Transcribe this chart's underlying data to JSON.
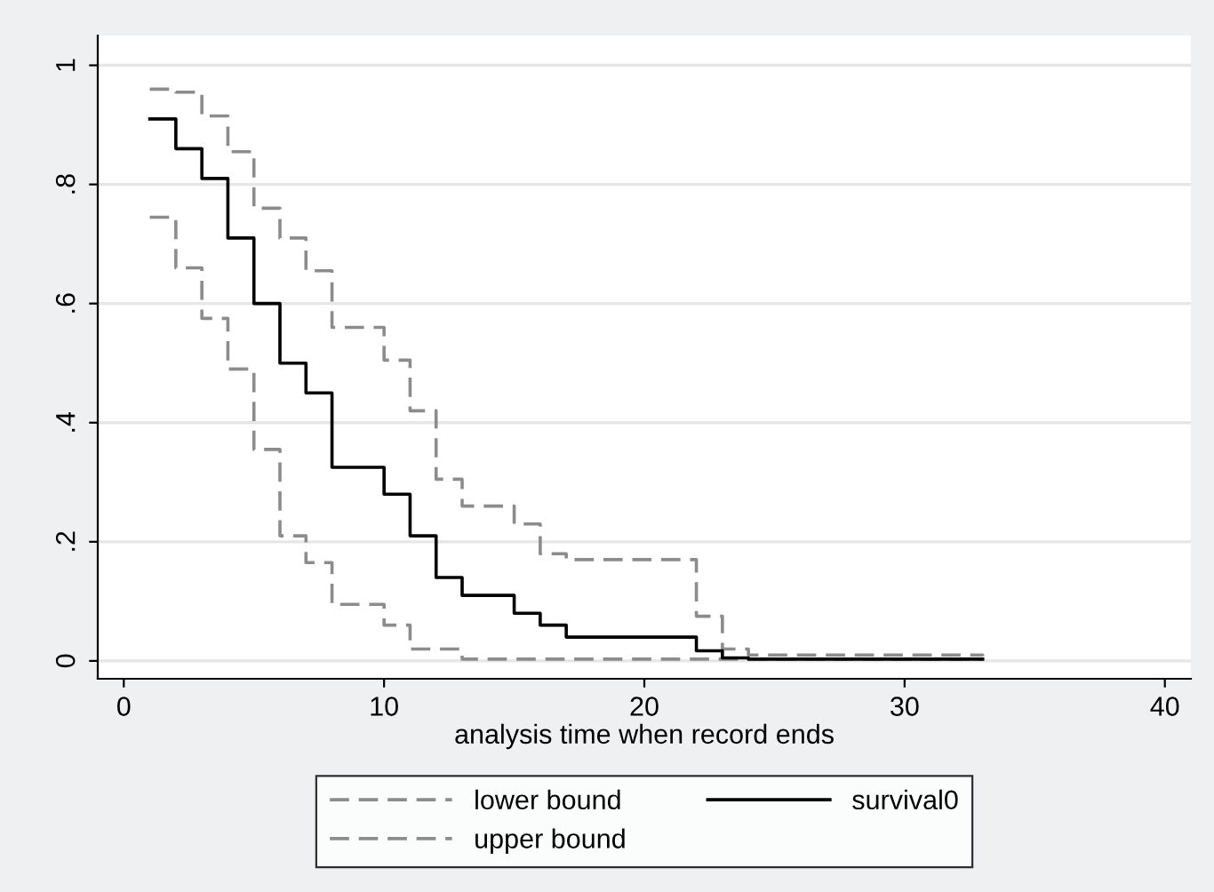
{
  "chart_data": {
    "type": "step",
    "xlabel": "analysis time when record ends",
    "x": [
      1,
      2,
      3,
      4,
      5,
      6,
      7,
      8,
      10,
      11,
      12,
      13,
      15,
      16,
      17,
      22,
      23,
      24,
      33
    ],
    "series": [
      {
        "name": "lower bound",
        "color": "#8c8c8c",
        "line_style": "dashed",
        "values": [
          0.745,
          0.66,
          0.575,
          0.49,
          0.355,
          0.21,
          0.165,
          0.095,
          0.06,
          0.02,
          0.02,
          0.003,
          0.003,
          0.003,
          0.003,
          0.003,
          0.003,
          0.003,
          0.003
        ]
      },
      {
        "name": "upper bound",
        "color": "#8c8c8c",
        "line_style": "dashed",
        "values": [
          0.96,
          0.955,
          0.915,
          0.855,
          0.76,
          0.71,
          0.655,
          0.56,
          0.505,
          0.42,
          0.305,
          0.26,
          0.23,
          0.18,
          0.17,
          0.075,
          0.02,
          0.01,
          0.008
        ]
      },
      {
        "name": "survival0",
        "color": "#000000",
        "line_style": "solid",
        "values": [
          0.91,
          0.86,
          0.81,
          0.71,
          0.6,
          0.5,
          0.45,
          0.325,
          0.28,
          0.21,
          0.14,
          0.11,
          0.08,
          0.06,
          0.04,
          0.017,
          0.005,
          0.003,
          0.003
        ]
      }
    ],
    "xlim": [
      -1,
      41
    ],
    "xticks": [
      0,
      10,
      20,
      30,
      40
    ],
    "ylim": [
      -0.03,
      1.05
    ],
    "yticks": [
      {
        "value": 0,
        "label": "0"
      },
      {
        "value": 0.2,
        "label": ".2"
      },
      {
        "value": 0.4,
        "label": ".4"
      },
      {
        "value": 0.6,
        "label": ".6"
      },
      {
        "value": 0.8,
        "label": ".8"
      },
      {
        "value": 1,
        "label": "1"
      }
    ],
    "grid": "y",
    "legend": "bottom"
  }
}
